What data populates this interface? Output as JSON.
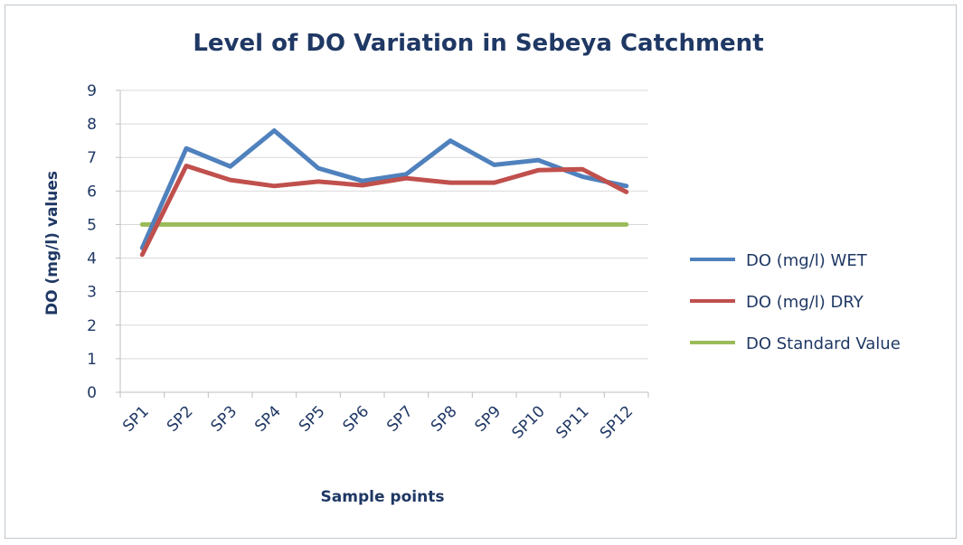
{
  "chart_data": {
    "type": "line",
    "title": "Level of DO Variation in Sebeya Catchment",
    "xlabel": "Sample points",
    "ylabel": "DO (mg/l) values",
    "categories": [
      "SP1",
      "SP2",
      "SP3",
      "SP4",
      "SP5",
      "SP6",
      "SP7",
      "SP8",
      "SP9",
      "SP10",
      "SP11",
      "SP12"
    ],
    "ylim": [
      0,
      9
    ],
    "yticks": [
      0,
      1,
      2,
      3,
      4,
      5,
      6,
      7,
      8,
      9
    ],
    "grid": true,
    "legend_position": "right",
    "series": [
      {
        "name": "DO (mg/l) WET",
        "color": "#4f81bd",
        "values": [
          4.3,
          7.27,
          6.73,
          7.8,
          6.68,
          6.3,
          6.5,
          7.5,
          6.78,
          6.92,
          6.43,
          6.15
        ]
      },
      {
        "name": "DO (mg/l) DRY",
        "color": "#c0504d",
        "values": [
          4.1,
          6.75,
          6.33,
          6.15,
          6.28,
          6.17,
          6.38,
          6.25,
          6.25,
          6.62,
          6.65,
          5.97
        ]
      },
      {
        "name": "DO Standard Value",
        "color": "#9bbb59",
        "values": [
          5,
          5,
          5,
          5,
          5,
          5,
          5,
          5,
          5,
          5,
          5,
          5
        ]
      }
    ]
  }
}
